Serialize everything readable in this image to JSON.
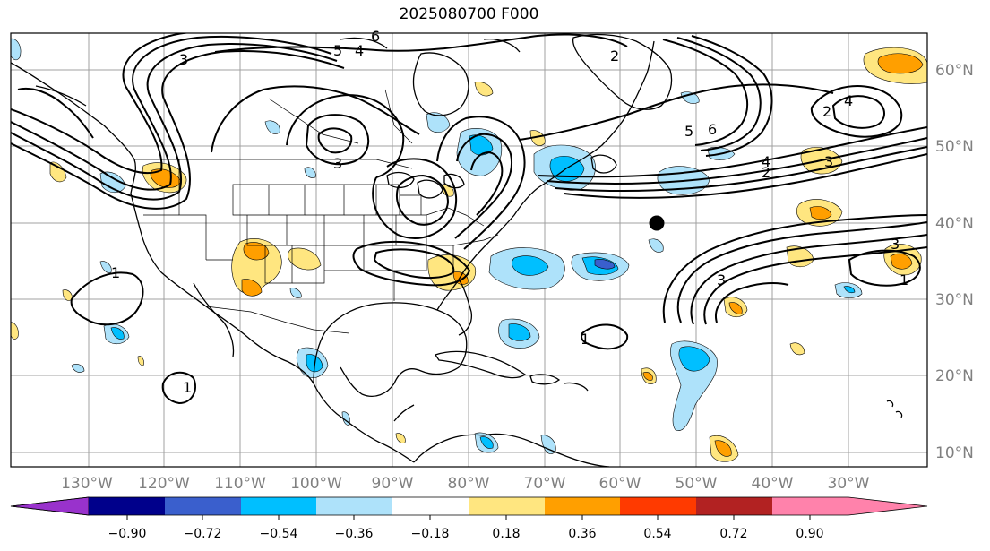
{
  "title": "2025080700 F000",
  "latitude_labels": [
    "60°N",
    "50°N",
    "40°N",
    "30°N",
    "20°N",
    "10°N"
  ],
  "longitude_labels": [
    "130°W",
    "120°W",
    "110°W",
    "100°W",
    "90°W",
    "80°W",
    "70°W",
    "60°W",
    "50°W",
    "40°W",
    "30°W"
  ],
  "contour_labels": [
    "2",
    "5",
    "6",
    "4",
    "3",
    "1",
    "2",
    "4",
    "3",
    "5",
    "6",
    "3",
    "4",
    "2",
    "3",
    "1",
    "1",
    "1",
    "3"
  ],
  "colorbar": {
    "ticks": [
      "−0.90",
      "−0.72",
      "−0.54",
      "−0.36",
      "−0.18",
      "0.18",
      "0.36",
      "0.54",
      "0.72",
      "0.90"
    ],
    "colors": [
      "#9932cc",
      "#00008b",
      "#3a5fcd",
      "#00bfff",
      "#aee2fa",
      "#ffffff",
      "#ffe680",
      "#ff9f00",
      "#ff3a00",
      "#b22222",
      "#ff82ab"
    ]
  },
  "marker": "storm-position"
}
